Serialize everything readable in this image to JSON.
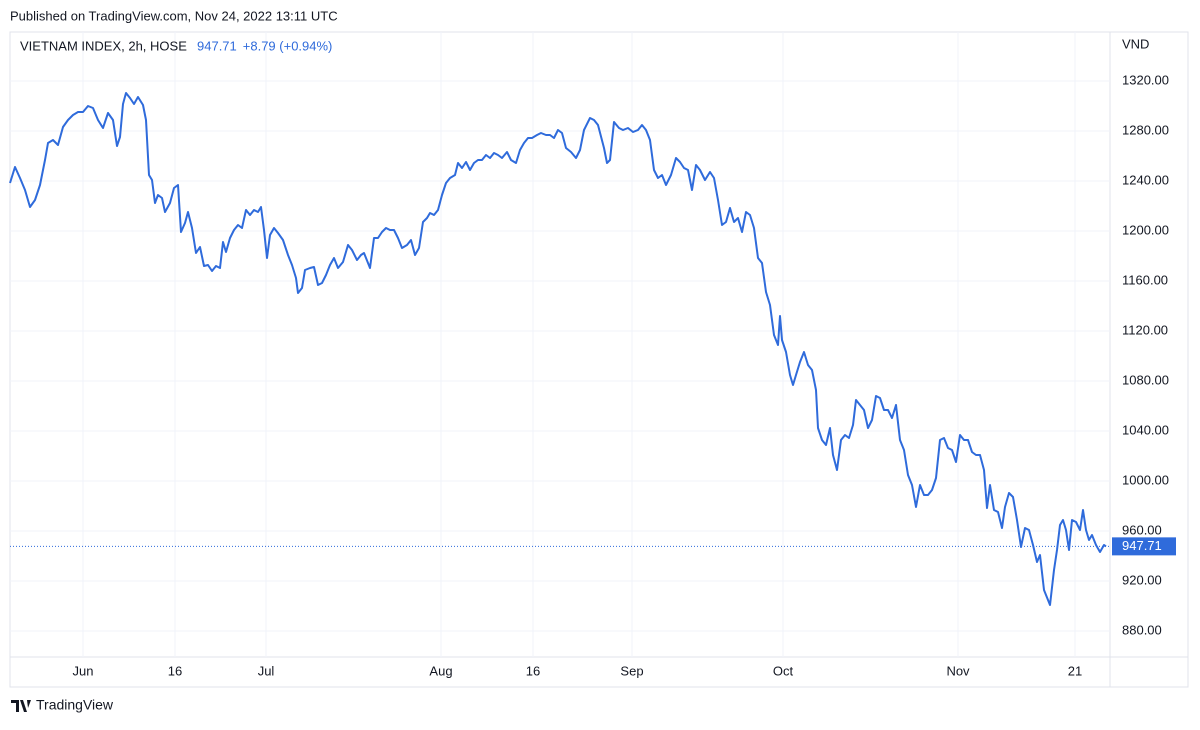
{
  "chart_data": {
    "type": "line",
    "published": "Published on TradingView.com, Nov 24, 2022 13:11 UTC",
    "currency": "VND",
    "last_value": 947.71,
    "change": "+8.79 (+0.94%)",
    "brand": "TradingView",
    "grid": true,
    "xlim": [
      0,
      1100
    ],
    "ylim": [
      859.2,
      1359.2
    ],
    "xticks": [
      {
        "value": 73,
        "label": "Jun"
      },
      {
        "value": 165,
        "label": "16"
      },
      {
        "value": 256,
        "label": "Jul"
      },
      {
        "value": 431,
        "label": "Aug"
      },
      {
        "value": 523,
        "label": "16"
      },
      {
        "value": 622,
        "label": "Sep"
      },
      {
        "value": 773,
        "label": "Oct"
      },
      {
        "value": 948,
        "label": "Nov"
      },
      {
        "value": 1065,
        "label": "21"
      }
    ],
    "yticks": [
      {
        "value": 880,
        "label": "880.00"
      },
      {
        "value": 920,
        "label": "920.00"
      },
      {
        "value": 960,
        "label": "960.00"
      },
      {
        "value": 1000,
        "label": "1000.00"
      },
      {
        "value": 1040,
        "label": "1040.00"
      },
      {
        "value": 1080,
        "label": "1080.00"
      },
      {
        "value": 1120,
        "label": "1120.00"
      },
      {
        "value": 1160,
        "label": "1160.00"
      },
      {
        "value": 1200,
        "label": "1200.00"
      },
      {
        "value": 1240,
        "label": "1240.00"
      },
      {
        "value": 1280,
        "label": "1280.00"
      },
      {
        "value": 1320,
        "label": "1320.00"
      }
    ],
    "x": [
      0,
      5,
      10,
      15,
      20,
      25,
      30,
      35,
      38,
      43,
      48,
      53,
      58,
      63,
      68,
      73,
      78,
      83,
      88,
      93,
      98,
      103,
      107,
      110,
      113,
      116,
      120,
      124,
      128,
      133,
      136,
      139,
      142,
      145,
      148,
      152,
      155,
      160,
      164,
      168,
      171,
      175,
      178,
      182,
      186,
      190,
      194,
      198,
      202,
      206,
      210,
      213,
      216,
      220,
      224,
      228,
      232,
      236,
      240,
      244,
      248,
      251,
      254,
      257,
      260,
      264,
      268,
      273,
      278,
      282,
      286,
      288,
      292,
      295,
      300,
      304,
      308,
      312,
      316,
      320,
      324,
      328,
      333,
      338,
      342,
      347,
      351,
      354,
      360,
      364,
      368,
      372,
      376,
      380,
      384,
      388,
      392,
      397,
      401,
      405,
      409,
      413,
      417,
      420,
      424,
      428,
      432,
      436,
      440,
      445,
      448,
      452,
      456,
      460,
      464,
      468,
      472,
      476,
      480,
      484,
      488,
      492,
      497,
      501,
      506,
      510,
      514,
      518,
      522,
      527,
      531,
      536,
      540,
      544,
      548,
      552,
      556,
      561,
      566,
      570,
      574,
      580,
      584,
      588,
      594,
      597,
      600,
      604,
      609,
      613,
      618,
      623,
      628,
      632,
      636,
      640,
      644,
      648,
      652,
      656,
      661,
      666,
      670,
      674,
      678,
      682,
      686,
      690,
      695,
      700,
      704,
      708,
      712,
      716,
      720,
      724,
      728,
      732,
      736,
      740,
      744,
      748,
      752,
      756,
      760,
      764,
      768,
      770,
      772,
      776,
      780,
      783,
      786,
      790,
      794,
      798,
      802,
      806,
      808,
      812,
      816,
      820,
      823,
      827,
      831,
      835,
      839,
      843,
      846,
      850,
      854,
      858,
      862,
      866,
      870,
      874,
      878,
      882,
      886,
      890,
      894,
      898,
      902,
      906,
      910,
      914,
      918,
      922,
      926,
      930,
      934,
      938,
      942,
      946,
      950,
      954,
      958,
      962,
      966,
      970,
      974,
      977,
      980,
      984,
      988,
      992,
      995,
      999,
      1003,
      1007,
      1011,
      1015,
      1019,
      1023,
      1027,
      1030,
      1034,
      1036,
      1040,
      1044,
      1047,
      1050,
      1053,
      1056,
      1059,
      1062,
      1066,
      1070,
      1073,
      1076,
      1079,
      1082,
      1086,
      1090,
      1094,
      1096
    ],
    "series": [
      {
        "name": "VIETNAM INDEX, 2h, HOSE",
        "color": "#2f6bdb",
        "values": [
          1238.4,
          1251.2,
          1242.4,
          1232.8,
          1219.2,
          1224.8,
          1236.8,
          1256.8,
          1270.4,
          1272.8,
          1268.8,
          1283.2,
          1288.8,
          1292.8,
          1295.2,
          1295.2,
          1300,
          1298.4,
          1288.8,
          1282.4,
          1294.4,
          1288.8,
          1268,
          1275.2,
          1301.6,
          1310.4,
          1306.4,
          1301.6,
          1307.2,
          1300.8,
          1288.8,
          1244.8,
          1240.8,
          1222.4,
          1228.8,
          1226.4,
          1215.2,
          1222.4,
          1234.4,
          1236.8,
          1199.2,
          1206.4,
          1215.2,
          1202.4,
          1182.4,
          1187.2,
          1172,
          1172.8,
          1168,
          1172,
          1170.4,
          1191.2,
          1183.2,
          1194.4,
          1200.8,
          1204.8,
          1202.4,
          1216.8,
          1212.8,
          1216.8,
          1215.2,
          1219.2,
          1200.8,
          1178.4,
          1196.8,
          1202.4,
          1198.4,
          1192.8,
          1180.8,
          1172.8,
          1162.4,
          1150.4,
          1154.4,
          1168.8,
          1170.4,
          1171.2,
          1156.8,
          1158.4,
          1164.8,
          1172.8,
          1178.4,
          1170.4,
          1175.2,
          1188.8,
          1184.8,
          1176.8,
          1180.8,
          1182.4,
          1170.4,
          1194.4,
          1194.4,
          1199.2,
          1202.4,
          1200.8,
          1200.8,
          1194.4,
          1186.4,
          1188.8,
          1192.8,
          1180.8,
          1186.4,
          1207.2,
          1210.4,
          1214.4,
          1212.8,
          1216.8,
          1228.8,
          1238.4,
          1242.4,
          1244.8,
          1254.4,
          1250.4,
          1255.2,
          1248.8,
          1254.4,
          1256.8,
          1256.8,
          1260.8,
          1258.4,
          1262.4,
          1260.8,
          1258.4,
          1263.2,
          1256.8,
          1254.4,
          1264.8,
          1270.4,
          1274.4,
          1274.4,
          1276.8,
          1278.4,
          1276.8,
          1276.8,
          1274.4,
          1280.8,
          1278.4,
          1266.4,
          1263.2,
          1258.4,
          1264.8,
          1280.8,
          1290.4,
          1288.8,
          1284.8,
          1266.4,
          1254.4,
          1256.8,
          1287.2,
          1282.4,
          1280.8,
          1282.4,
          1279.2,
          1280.8,
          1284.8,
          1280.8,
          1272.8,
          1248.8,
          1242.4,
          1244.8,
          1236.8,
          1244.8,
          1258.4,
          1255.2,
          1250.4,
          1248.8,
          1232.8,
          1252.8,
          1248.8,
          1240.8,
          1247.2,
          1242.4,
          1224.8,
          1204.8,
          1207.2,
          1218.4,
          1207.2,
          1210.4,
          1199.2,
          1215.2,
          1212.8,
          1202.4,
          1178.4,
          1174.4,
          1151.2,
          1140.8,
          1116.8,
          1108.8,
          1132,
          1112.8,
          1103.2,
          1084.8,
          1076.8,
          1084.8,
          1095.2,
          1103.2,
          1092.8,
          1088.8,
          1072.8,
          1042.4,
          1032.8,
          1028.8,
          1042.4,
          1020.8,
          1008.8,
          1032.8,
          1036.8,
          1034.4,
          1044.8,
          1064.8,
          1060.8,
          1056.8,
          1042.4,
          1048.8,
          1068,
          1066.4,
          1056.8,
          1056.8,
          1050.4,
          1060.8,
          1032.8,
          1024.8,
          1004.8,
          996.8,
          979.2,
          996.8,
          988.8,
          988.8,
          992.8,
          1002.4,
          1032.8,
          1034.4,
          1026.4,
          1024.8,
          1015.2,
          1036.8,
          1032.8,
          1032.8,
          1023.2,
          1020.8,
          1020.8,
          1008.8,
          978.4,
          996.8,
          976.8,
          975.2,
          962.4,
          979.2,
          990.4,
          987.2,
          968.8,
          947.2,
          962.4,
          960.8,
          948.8,
          935.2,
          940.8,
          912.8,
          908.8,
          900.8,
          928.8,
          944.8,
          964.8,
          968.8,
          960.8,
          944.8,
          968.8,
          967.2,
          960.8,
          976.8,
          960.8,
          952.8,
          956.8,
          948.8,
          943.2,
          948.8,
          947.71
        ]
      }
    ]
  }
}
